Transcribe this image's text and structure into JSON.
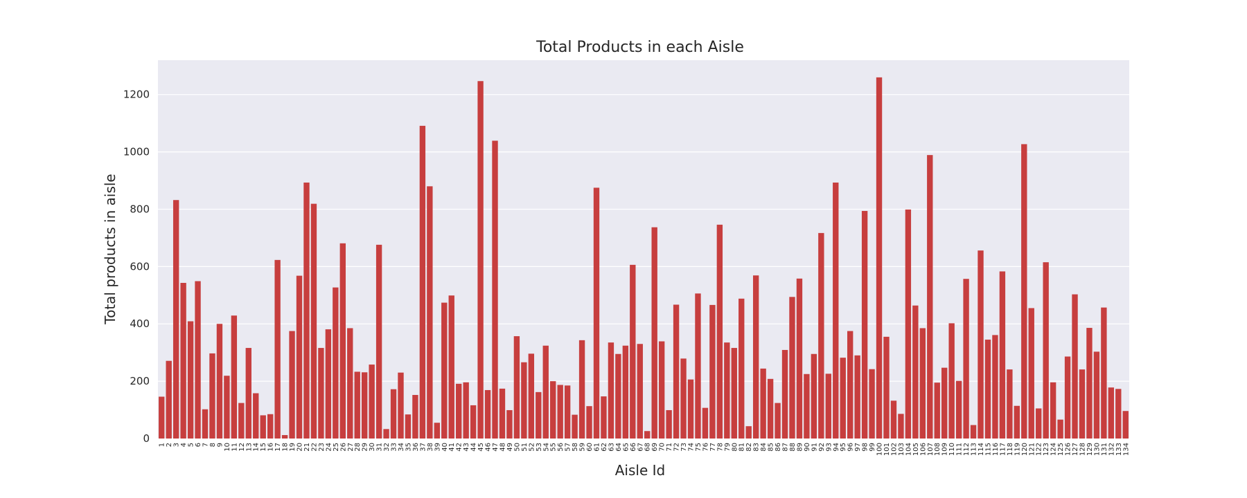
{
  "chart_data": {
    "type": "bar",
    "title": "Total Products in each Aisle",
    "xlabel": "Aisle Id",
    "ylabel": "Total products in aisle",
    "ylim": [
      0,
      1320
    ],
    "yticks": [
      0,
      200,
      400,
      600,
      800,
      1000,
      1200
    ],
    "grid": true,
    "background_color": "#eaeaf2",
    "bar_color": "#c73e3e",
    "categories": [
      "1",
      "2",
      "3",
      "4",
      "5",
      "6",
      "7",
      "8",
      "9",
      "10",
      "11",
      "12",
      "13",
      "14",
      "15",
      "16",
      "17",
      "18",
      "19",
      "20",
      "21",
      "22",
      "23",
      "24",
      "25",
      "26",
      "27",
      "28",
      "29",
      "30",
      "31",
      "32",
      "33",
      "34",
      "35",
      "36",
      "37",
      "38",
      "39",
      "40",
      "41",
      "42",
      "43",
      "44",
      "45",
      "46",
      "47",
      "48",
      "49",
      "50",
      "51",
      "52",
      "53",
      "54",
      "55",
      "56",
      "57",
      "58",
      "59",
      "60",
      "61",
      "62",
      "63",
      "64",
      "65",
      "66",
      "67",
      "68",
      "69",
      "70",
      "71",
      "72",
      "73",
      "74",
      "75",
      "76",
      "77",
      "78",
      "79",
      "80",
      "81",
      "82",
      "83",
      "84",
      "85",
      "86",
      "87",
      "88",
      "89",
      "90",
      "91",
      "92",
      "93",
      "94",
      "95",
      "96",
      "97",
      "98",
      "99",
      "100",
      "101",
      "102",
      "103",
      "104",
      "105",
      "106",
      "107",
      "108",
      "109",
      "110",
      "111",
      "112",
      "113",
      "114",
      "115",
      "116",
      "117",
      "118",
      "119",
      "120",
      "121",
      "122",
      "123",
      "124",
      "125",
      "126",
      "127",
      "128",
      "129",
      "130",
      "131",
      "132",
      "133",
      "134"
    ],
    "values": [
      146,
      271,
      832,
      543,
      409,
      549,
      102,
      297,
      400,
      219,
      429,
      124,
      316,
      158,
      81,
      85,
      623,
      12,
      375,
      568,
      893,
      819,
      316,
      381,
      527,
      681,
      385,
      233,
      231,
      258,
      676,
      33,
      172,
      230,
      84,
      152,
      1091,
      880,
      55,
      474,
      499,
      191,
      196,
      116,
      1247,
      169,
      1039,
      174,
      99,
      357,
      266,
      296,
      162,
      324,
      200,
      187,
      185,
      83,
      343,
      113,
      875,
      147,
      335,
      295,
      324,
      606,
      330,
      26,
      737,
      339,
      99,
      467,
      279,
      206,
      506,
      107,
      466,
      746,
      335,
      316,
      488,
      43,
      569,
      244,
      208,
      124,
      309,
      494,
      558,
      225,
      295,
      717,
      226,
      893,
      282,
      375,
      290,
      794,
      242,
      1260,
      355,
      132,
      86,
      799,
      464,
      385,
      989,
      195,
      247,
      402,
      201,
      557,
      47,
      656,
      345,
      361,
      583,
      241,
      114,
      1027,
      455,
      105,
      615,
      196,
      66,
      286,
      503,
      241,
      386,
      303,
      457,
      178,
      173,
      96
    ]
  }
}
